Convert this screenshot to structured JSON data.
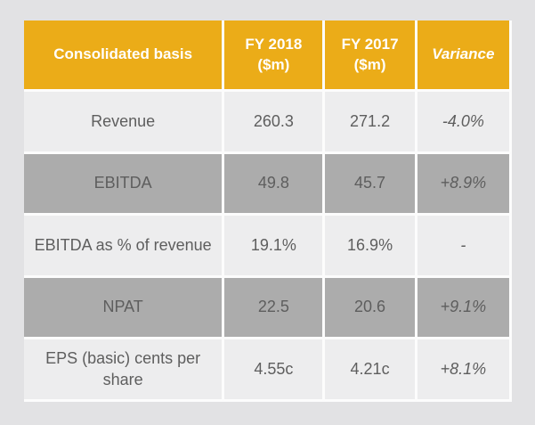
{
  "colors": {
    "page_bg": "#E2E2E4",
    "gold": "#EBAC18",
    "row_light": "#EDEDEE",
    "row_dark": "#ACACAC",
    "grid_white": "#FCFCFC",
    "text": "#5E5E5E",
    "header_text": "#FFFFFF"
  },
  "table": {
    "headers": {
      "basis": "Consolidated basis",
      "fy2018": "FY 2018\n($m)",
      "fy2017": "FY 2017\n($m)",
      "variance": "Variance"
    },
    "rows": [
      {
        "label": "Revenue",
        "fy2018": "260.3",
        "fy2017": "271.2",
        "variance": "-4.0%"
      },
      {
        "label": "EBITDA",
        "fy2018": "49.8",
        "fy2017": "45.7",
        "variance": "+8.9%"
      },
      {
        "label": "EBITDA as % of revenue",
        "fy2018": "19.1%",
        "fy2017": "16.9%",
        "variance": "-"
      },
      {
        "label": "NPAT",
        "fy2018": "22.5",
        "fy2017": "20.6",
        "variance": "+9.1%"
      },
      {
        "label": "EPS (basic) cents per share",
        "fy2018": "4.55c",
        "fy2017": "4.21c",
        "variance": "+8.1%"
      }
    ]
  }
}
